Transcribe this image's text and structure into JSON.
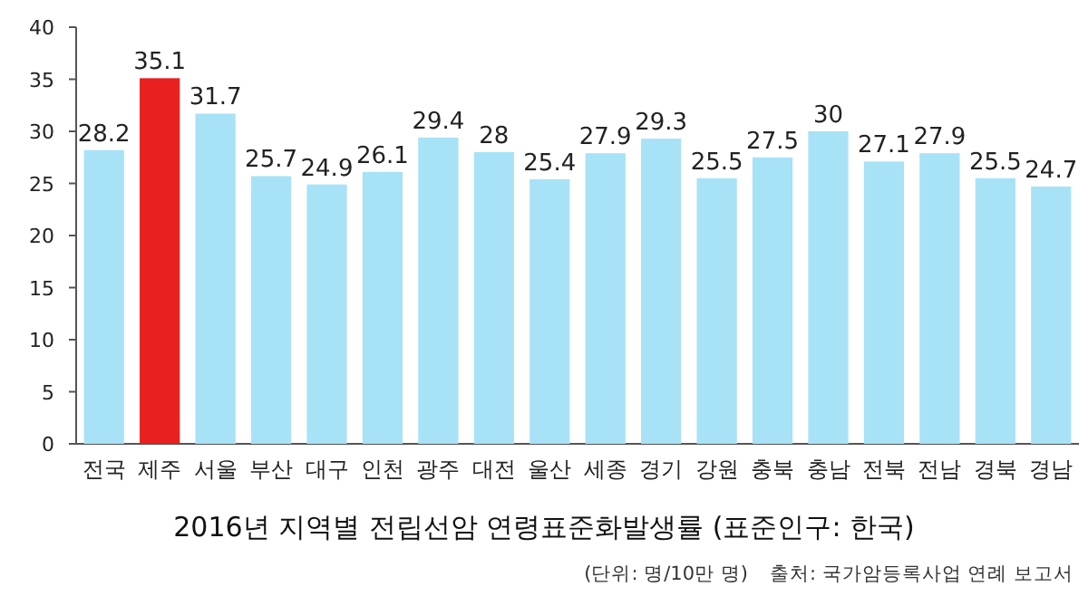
{
  "chart_data": {
    "type": "bar",
    "title": "2016년 지역별 전립선암 연령표준화발생률 (표준인구: 한국)",
    "categories": [
      "전국",
      "제주",
      "서울",
      "부산",
      "대구",
      "인천",
      "광주",
      "대전",
      "울산",
      "세종",
      "경기",
      "강원",
      "충북",
      "충남",
      "전북",
      "전남",
      "경북",
      "경남"
    ],
    "values": [
      28.2,
      35.1,
      31.7,
      25.7,
      24.9,
      26.1,
      29.4,
      28,
      25.4,
      27.9,
      29.3,
      25.5,
      27.5,
      30,
      27.1,
      27.9,
      25.5,
      24.7
    ],
    "colors": [
      "#a8e2f7",
      "#e8201f",
      "#a8e2f7",
      "#a8e2f7",
      "#a8e2f7",
      "#a8e2f7",
      "#a8e2f7",
      "#a8e2f7",
      "#a8e2f7",
      "#a8e2f7",
      "#a8e2f7",
      "#a8e2f7",
      "#a8e2f7",
      "#a8e2f7",
      "#a8e2f7",
      "#a8e2f7",
      "#a8e2f7",
      "#a8e2f7"
    ],
    "ylim": [
      0,
      40
    ],
    "yticks": [
      0,
      5,
      10,
      15,
      20,
      25,
      30,
      35,
      40
    ],
    "data_labels": true,
    "annotations": [
      "(단위: 명/10만 명)",
      "출처: 국가암등록사업 연례 보고서"
    ]
  }
}
